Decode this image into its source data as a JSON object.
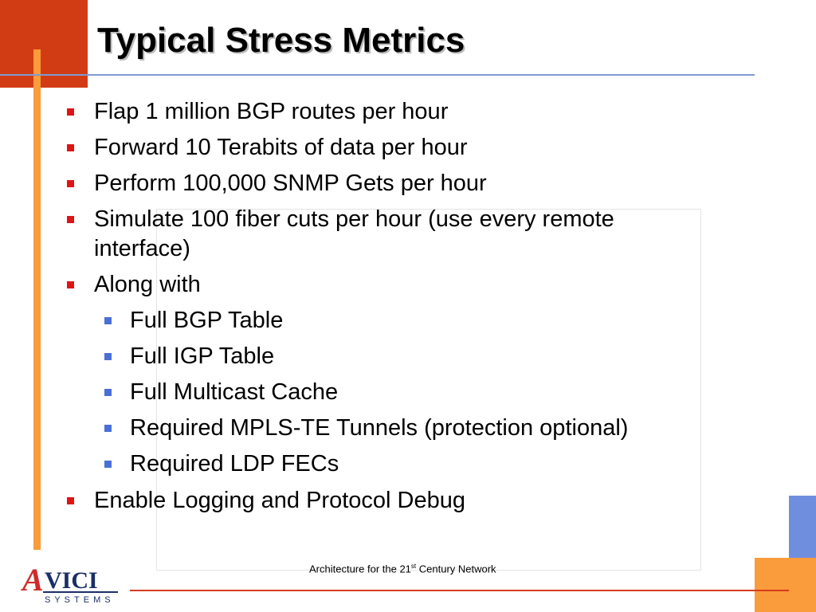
{
  "slide": {
    "title": "Typical Stress Metrics",
    "bullets": [
      {
        "text": "Flap 1 million BGP routes per hour"
      },
      {
        "text": "Forward 10 Terabits of data per hour"
      },
      {
        "text": "Perform 100,000 SNMP Gets per hour"
      },
      {
        "text": "Simulate 100 fiber cuts per hour (use every remote",
        "continuation": "interface)"
      },
      {
        "text": "Along with"
      },
      {
        "text": "Full BGP Table"
      },
      {
        "text": "Full IGP Table"
      },
      {
        "text": "Full Multicast Cache"
      },
      {
        "text": "Required MPLS-TE Tunnels (protection optional)"
      },
      {
        "text": "Required LDP FECs"
      },
      {
        "text": "Enable Logging and Protocol Debug"
      }
    ],
    "footer": {
      "prefix": "Architecture for the 21",
      "superscript": "st",
      "suffix": " Century Network"
    }
  },
  "logo": {
    "name": "AVICI",
    "subtitle": "SYSTEMS"
  },
  "colors": {
    "accent_orange": "#fa9b3c",
    "corner_red": "#d23c14",
    "rule_blue": "#7f9ad4",
    "right_blue": "#6f8ede",
    "bullet_red": "#e11414",
    "bullet_blue": "#4a6fd6",
    "bottom_rule_red": "#d43c1e",
    "logo_red": "#cf2b2b",
    "logo_navy": "#1a2f66"
  }
}
